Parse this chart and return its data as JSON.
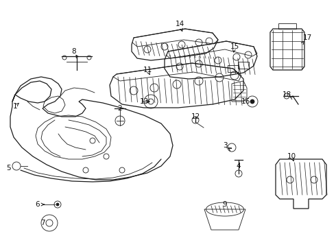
{
  "bg_color": "#ffffff",
  "line_color": "#1a1a1a",
  "lw_thin": 0.6,
  "lw_med": 0.9,
  "lw_thick": 1.2
}
